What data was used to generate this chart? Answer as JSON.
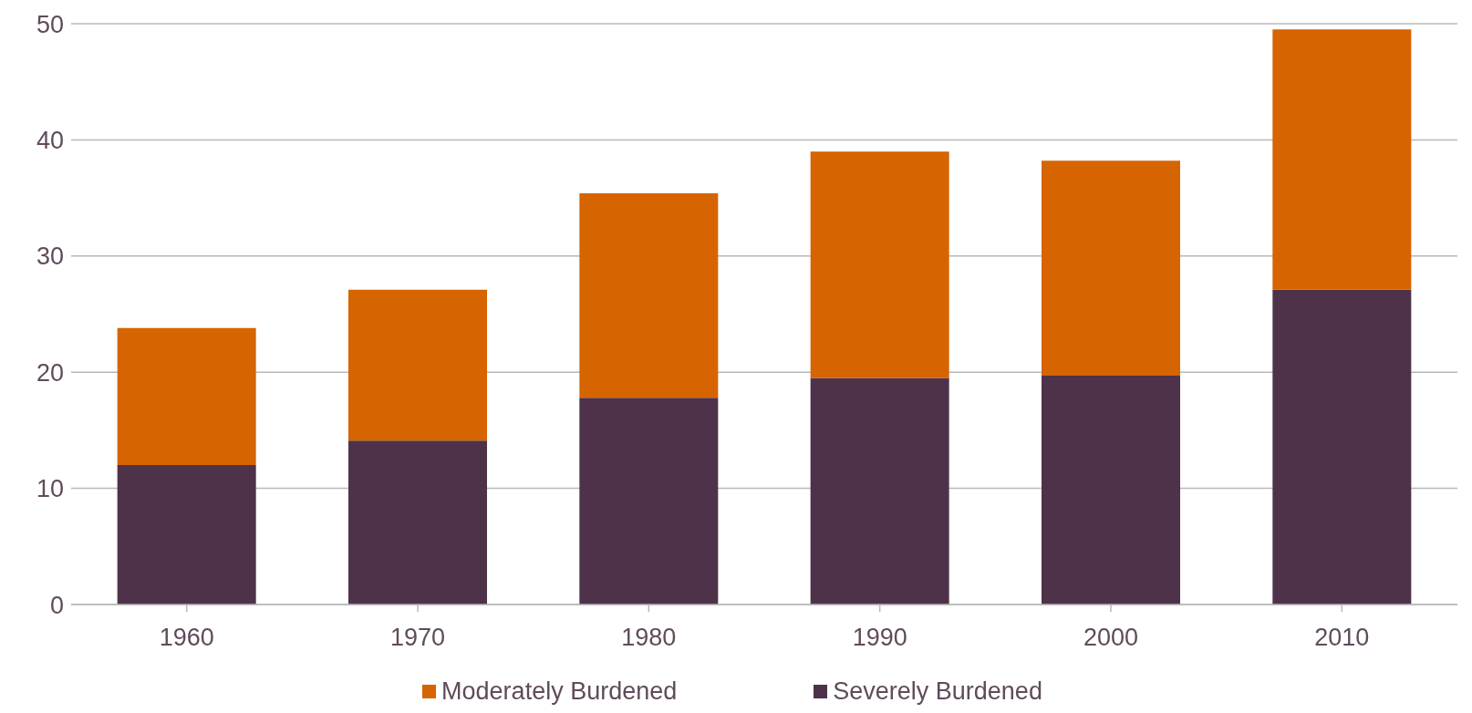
{
  "chart_data": {
    "type": "bar",
    "stacked": true,
    "categories": [
      "1960",
      "1970",
      "1980",
      "1990",
      "2000",
      "2010"
    ],
    "series": [
      {
        "name": "Severely Burdened",
        "color": "#4e3249",
        "values": [
          12,
          14.1,
          17.8,
          19.5,
          19.7,
          27.1
        ]
      },
      {
        "name": "Moderately Burdened",
        "color": "#d66400",
        "values": [
          11.8,
          13,
          17.6,
          19.5,
          18.5,
          22.4
        ]
      }
    ],
    "ylim": [
      0,
      50
    ],
    "yticks": [
      0,
      10,
      20,
      30,
      40,
      50
    ],
    "grid": "y",
    "legend": "bottom"
  }
}
